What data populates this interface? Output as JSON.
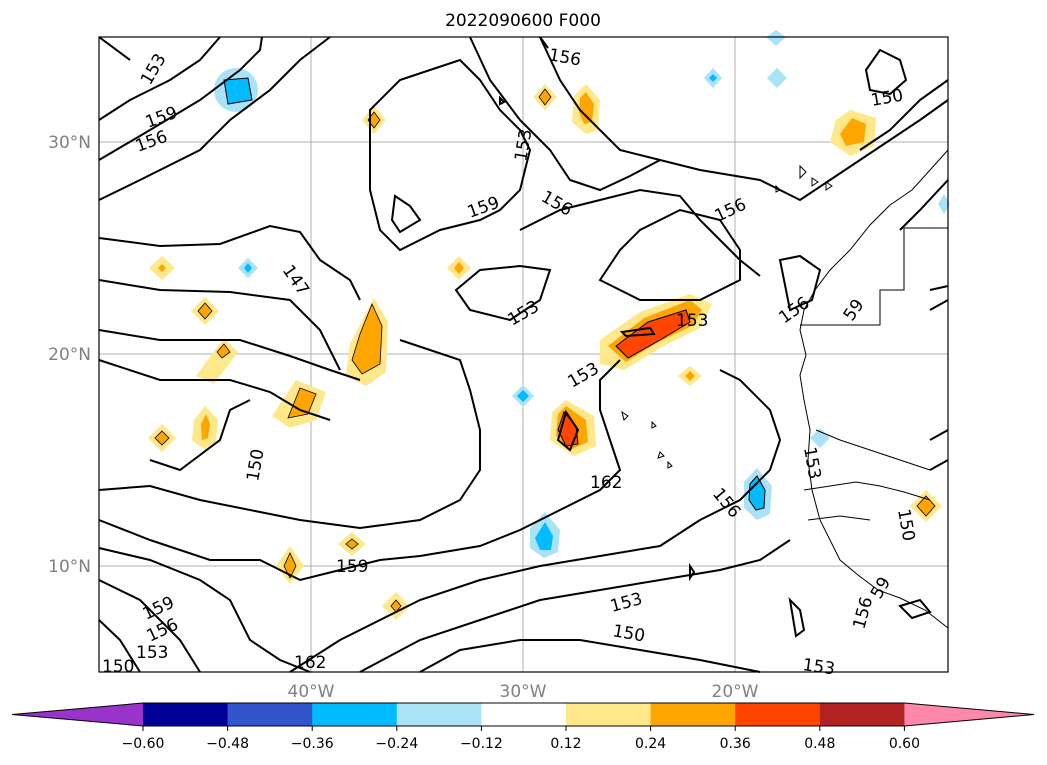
{
  "title": "2022090600 F000",
  "lat_labels": [
    "30°N",
    "20°N",
    "10°N"
  ],
  "lon_labels": [
    "40°W",
    "30°W",
    "20°W"
  ],
  "extent": {
    "lon_min": -50,
    "lon_max": -10,
    "lat_min": 5,
    "lat_max": 35
  },
  "gridlines": true,
  "contour_labels": [
    "153",
    "159",
    "156",
    "156",
    "153",
    "159",
    "156",
    "156",
    "150",
    "147",
    "153",
    "153",
    "153",
    "156",
    "59",
    "150",
    "162",
    "156",
    "153",
    "150",
    "159",
    "159",
    "156",
    "153",
    "162",
    "153",
    "150",
    "156",
    "59",
    "150",
    "153"
  ],
  "colorbar": {
    "ticks": [
      "−0.60",
      "−0.48",
      "−0.36",
      "−0.24",
      "−0.12",
      "0.12",
      "0.24",
      "0.36",
      "0.48",
      "0.60"
    ],
    "colors": [
      "#9933cc",
      "#000099",
      "#3355cc",
      "#00bbff",
      "#aae3f7",
      "#ffffff",
      "#ffe88a",
      "#ffa500",
      "#ff4500",
      "#b22222",
      "#ff88aa"
    ],
    "extend": "both"
  }
}
